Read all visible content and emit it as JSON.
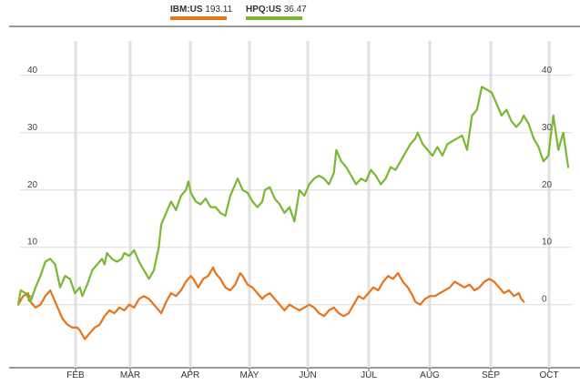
{
  "legend": [
    {
      "symbol": "IBM:US",
      "value": "193.11",
      "color": "#e8731a"
    },
    {
      "symbol": "HPQ:US",
      "value": "36.47",
      "color": "#7ab733"
    }
  ],
  "chart_data": {
    "type": "line",
    "yticks": [
      0,
      10,
      20,
      30,
      40
    ],
    "ylim": [
      -11,
      46
    ],
    "months": [
      "FEB",
      "MAR",
      "APR",
      "MAY",
      "JUN",
      "JUL",
      "AUG",
      "SEP",
      "OCT"
    ],
    "grid": true,
    "series": [
      {
        "name": "IBM:US",
        "color": "#e8731a",
        "points": [
          [
            0,
            0
          ],
          [
            2,
            1.5
          ],
          [
            4,
            2
          ],
          [
            5,
            0.5
          ],
          [
            7,
            -0.5
          ],
          [
            9,
            0
          ],
          [
            11,
            1.5
          ],
          [
            13,
            2.5
          ],
          [
            14,
            1.5
          ],
          [
            16,
            -0.5
          ],
          [
            18,
            -2.5
          ],
          [
            20,
            -3.5
          ],
          [
            22,
            -4
          ],
          [
            24,
            -4
          ],
          [
            25,
            -4.5
          ],
          [
            27,
            -6
          ],
          [
            28,
            -5.5
          ],
          [
            29,
            -5
          ],
          [
            31,
            -4
          ],
          [
            33,
            -3.5
          ],
          [
            35,
            -2
          ],
          [
            37,
            -1
          ],
          [
            39,
            -1.5
          ],
          [
            41,
            -0.5
          ],
          [
            43,
            -1
          ],
          [
            45,
            0
          ],
          [
            47,
            -0.5
          ],
          [
            49,
            1
          ],
          [
            51,
            1.5
          ],
          [
            53,
            1
          ],
          [
            55,
            0
          ],
          [
            57,
            -1
          ],
          [
            58,
            -1.5
          ],
          [
            60,
            0.5
          ],
          [
            62,
            2
          ],
          [
            64,
            1.5
          ],
          [
            66,
            2.5
          ],
          [
            68,
            4
          ],
          [
            70,
            5
          ],
          [
            71,
            4.5
          ],
          [
            73,
            3
          ],
          [
            75,
            4.5
          ],
          [
            77,
            5
          ],
          [
            79,
            6.5
          ],
          [
            80,
            5.5
          ],
          [
            82,
            4.5
          ],
          [
            84,
            3
          ],
          [
            86,
            2.5
          ],
          [
            88,
            3.5
          ],
          [
            90,
            5.5
          ],
          [
            91,
            5
          ],
          [
            93,
            3.5
          ],
          [
            95,
            3
          ],
          [
            97,
            2
          ],
          [
            99,
            1
          ],
          [
            100,
            1.5
          ],
          [
            102,
            2
          ],
          [
            104,
            1
          ],
          [
            106,
            0
          ],
          [
            108,
            -1
          ],
          [
            110,
            0
          ],
          [
            112,
            -0.5
          ],
          [
            114,
            -1
          ],
          [
            116,
            -0.5
          ],
          [
            118,
            0
          ],
          [
            120,
            -0.5
          ],
          [
            122,
            -1.5
          ],
          [
            124,
            -2
          ],
          [
            126,
            -1
          ],
          [
            128,
            -0.5
          ],
          [
            130,
            -1.5
          ],
          [
            132,
            -2
          ],
          [
            134,
            -1.5
          ],
          [
            136,
            0
          ],
          [
            138,
            1.5
          ],
          [
            140,
            1
          ],
          [
            142,
            2
          ],
          [
            144,
            3
          ],
          [
            146,
            2.5
          ],
          [
            148,
            4
          ],
          [
            150,
            5
          ],
          [
            152,
            4.5
          ],
          [
            154,
            5.5
          ],
          [
            156,
            4
          ],
          [
            158,
            3
          ],
          [
            160,
            1.5
          ],
          [
            161,
            0.5
          ],
          [
            163,
            0
          ],
          [
            165,
            1
          ],
          [
            167,
            1.5
          ],
          [
            169,
            1.5
          ],
          [
            171,
            2
          ],
          [
            173,
            2.5
          ],
          [
            175,
            3
          ],
          [
            177,
            4
          ],
          [
            179,
            3.5
          ],
          [
            181,
            3
          ],
          [
            183,
            3.5
          ],
          [
            185,
            2.5
          ],
          [
            187,
            3
          ],
          [
            189,
            4
          ],
          [
            191,
            4.5
          ],
          [
            193,
            4
          ],
          [
            195,
            3
          ],
          [
            197,
            2
          ],
          [
            199,
            2.5
          ],
          [
            201,
            1.5
          ],
          [
            203,
            2
          ],
          [
            204,
            1
          ],
          [
            205,
            0.5
          ]
        ]
      },
      {
        "name": "HPQ:US",
        "color": "#7ab733",
        "points": [
          [
            0,
            0
          ],
          [
            1,
            2.5
          ],
          [
            3,
            2
          ],
          [
            5,
            0.5
          ],
          [
            7,
            3
          ],
          [
            9,
            5
          ],
          [
            11,
            7.5
          ],
          [
            13,
            8
          ],
          [
            15,
            7
          ],
          [
            17,
            3
          ],
          [
            19,
            5
          ],
          [
            21,
            4.5
          ],
          [
            23,
            2
          ],
          [
            25,
            3
          ],
          [
            26,
            1.5
          ],
          [
            28,
            3.5
          ],
          [
            30,
            6
          ],
          [
            32,
            7
          ],
          [
            34,
            8
          ],
          [
            35,
            7
          ],
          [
            36,
            9
          ],
          [
            38,
            8
          ],
          [
            40,
            7.5
          ],
          [
            42,
            8
          ],
          [
            43,
            9
          ],
          [
            45,
            8.5
          ],
          [
            47,
            9.5
          ],
          [
            49,
            7.5
          ],
          [
            51,
            6
          ],
          [
            53,
            4.5
          ],
          [
            55,
            6
          ],
          [
            57,
            10
          ],
          [
            58,
            14
          ],
          [
            60,
            16
          ],
          [
            62,
            18
          ],
          [
            64,
            16.5
          ],
          [
            66,
            19
          ],
          [
            68,
            20
          ],
          [
            69,
            21.5
          ],
          [
            70,
            19.5
          ],
          [
            72,
            18
          ],
          [
            74,
            17.5
          ],
          [
            76,
            18.5
          ],
          [
            78,
            17
          ],
          [
            80,
            17
          ],
          [
            82,
            16
          ],
          [
            84,
            15.5
          ],
          [
            86,
            19
          ],
          [
            88,
            21
          ],
          [
            89,
            22
          ],
          [
            91,
            20
          ],
          [
            93,
            19.5
          ],
          [
            95,
            18
          ],
          [
            97,
            17
          ],
          [
            99,
            18
          ],
          [
            100,
            20
          ],
          [
            102,
            20.5
          ],
          [
            104,
            18.5
          ],
          [
            106,
            17.5
          ],
          [
            108,
            16
          ],
          [
            110,
            17
          ],
          [
            112,
            14.5
          ],
          [
            114,
            20
          ],
          [
            116,
            19
          ],
          [
            118,
            21
          ],
          [
            120,
            22
          ],
          [
            122,
            22.5
          ],
          [
            124,
            22
          ],
          [
            126,
            21
          ],
          [
            128,
            23
          ],
          [
            129,
            27
          ],
          [
            131,
            25
          ],
          [
            133,
            24
          ],
          [
            135,
            22.5
          ],
          [
            137,
            21
          ],
          [
            139,
            22
          ],
          [
            141,
            21.5
          ],
          [
            143,
            23.5
          ],
          [
            145,
            22.5
          ],
          [
            147,
            21
          ],
          [
            149,
            22
          ],
          [
            151,
            24
          ],
          [
            153,
            23.5
          ],
          [
            155,
            25
          ],
          [
            157,
            26.5
          ],
          [
            159,
            28
          ],
          [
            161,
            29
          ],
          [
            162,
            30
          ],
          [
            164,
            28
          ],
          [
            166,
            27
          ],
          [
            168,
            26
          ],
          [
            170,
            27.5
          ],
          [
            172,
            26
          ],
          [
            174,
            28
          ],
          [
            176,
            28.5
          ],
          [
            178,
            29
          ],
          [
            180,
            29.5
          ],
          [
            182,
            27
          ],
          [
            184,
            33
          ],
          [
            186,
            34
          ],
          [
            188,
            38
          ],
          [
            190,
            37.5
          ],
          [
            192,
            37
          ],
          [
            194,
            35
          ],
          [
            196,
            33
          ],
          [
            198,
            34
          ],
          [
            200,
            32
          ],
          [
            202,
            31
          ],
          [
            204,
            32
          ],
          [
            205,
            33
          ],
          [
            207,
            31.5
          ],
          [
            209,
            29
          ],
          [
            211,
            27.5
          ],
          [
            213,
            25
          ],
          [
            215,
            26
          ],
          [
            217,
            33
          ],
          [
            219,
            27
          ],
          [
            221,
            30
          ],
          [
            223,
            24
          ]
        ]
      }
    ]
  }
}
